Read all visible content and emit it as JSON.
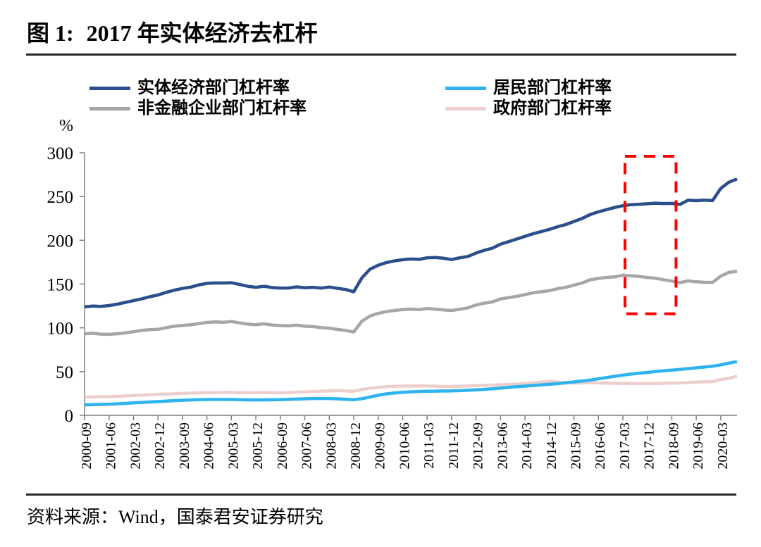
{
  "figure": {
    "number_label": "图 1:",
    "title": "2017 年实体经济去杠杆",
    "source_label": "资料来源：",
    "source_text": "Wind，国泰君安证券研究"
  },
  "legend": {
    "items": [
      {
        "label": "实体经济部门杠杆率",
        "color": "#2b4e8c"
      },
      {
        "label": "居民部门杠杆率",
        "color": "#2eb3f0"
      },
      {
        "label": "非金融企业部门杠杆率",
        "color": "#a6a6a6"
      },
      {
        "label": "政府部门杠杆率",
        "color": "#eccfcd"
      }
    ]
  },
  "chart_data": {
    "type": "line",
    "title": "2017 年实体经济去杠杆",
    "ylabel": "%",
    "ylim": [
      0,
      300
    ],
    "y_ticks": [
      0,
      50,
      100,
      150,
      200,
      250,
      300
    ],
    "grid": false,
    "legend_position": "top",
    "x_start": "2000-09",
    "x_end": "2020-09",
    "x_freq_months": 3,
    "x_tick_labels": [
      "2000-09",
      "2001-06",
      "2002-03",
      "2002-12",
      "2003-09",
      "2004-06",
      "2005-03",
      "2005-12",
      "2006-09",
      "2007-06",
      "2008-03",
      "2008-12",
      "2009-09",
      "2010-06",
      "2011-03",
      "2011-12",
      "2012-09",
      "2013-06",
      "2014-03",
      "2014-12",
      "2015-09",
      "2016-06",
      "2017-03",
      "2017-12",
      "2018-09",
      "2019-06",
      "2020-03"
    ],
    "series": [
      {
        "name": "实体经济部门杠杆率",
        "color": "#2b4e8c",
        "values": [
          124.0,
          124.8,
          124.5,
          125.5,
          127.0,
          129.0,
          131.0,
          133.0,
          135.5,
          137.5,
          140.5,
          143.0,
          145.0,
          146.5,
          149.0,
          150.8,
          151.3,
          151.2,
          151.5,
          149.5,
          147.5,
          146.3,
          147.5,
          146.0,
          145.3,
          145.5,
          146.8,
          145.8,
          146.3,
          145.4,
          146.6,
          145.2,
          143.8,
          141.2,
          157.0,
          167.0,
          171.5,
          174.5,
          176.5,
          177.8,
          178.6,
          178.2,
          180.0,
          180.3,
          179.5,
          178.0,
          180.0,
          181.5,
          185.5,
          188.5,
          191.0,
          195.5,
          198.5,
          201.5,
          204.5,
          207.5,
          210.0,
          212.5,
          215.5,
          218.0,
          221.5,
          225.0,
          229.5,
          232.5,
          235.0,
          237.5,
          239.5,
          240.7,
          241.2,
          241.8,
          242.4,
          242.0,
          242.2,
          241.0,
          245.8,
          245.3,
          245.9,
          245.4,
          259.3,
          266.4,
          270.1
        ]
      },
      {
        "name": "居民部门杠杆率",
        "color": "#2eb3f0",
        "values": [
          12.0,
          12.2,
          12.5,
          12.8,
          13.2,
          13.7,
          14.2,
          14.8,
          15.3,
          15.8,
          16.3,
          16.8,
          17.2,
          17.6,
          17.9,
          18.1,
          18.2,
          18.2,
          18.1,
          17.9,
          17.7,
          17.6,
          17.7,
          17.8,
          18.0,
          18.3,
          18.6,
          18.9,
          19.2,
          19.3,
          19.2,
          18.9,
          18.4,
          17.9,
          19.0,
          21.0,
          23.0,
          24.5,
          25.5,
          26.3,
          26.9,
          27.3,
          27.5,
          27.7,
          27.8,
          27.9,
          28.2,
          28.6,
          29.1,
          29.7,
          30.4,
          31.1,
          31.9,
          32.7,
          33.4,
          34.1,
          34.8,
          35.5,
          36.3,
          37.2,
          38.2,
          39.2,
          40.4,
          41.8,
          43.2,
          44.6,
          45.9,
          47.1,
          48.2,
          49.1,
          50.0,
          50.9,
          51.7,
          52.4,
          53.4,
          54.3,
          55.2,
          56.1,
          57.7,
          59.7,
          61.4
        ]
      },
      {
        "name": "非金融企业部门杠杆率",
        "color": "#a6a6a6",
        "values": [
          93.2,
          93.8,
          92.8,
          92.6,
          93.2,
          94.2,
          95.6,
          97.0,
          98.0,
          98.3,
          100.2,
          101.8,
          102.8,
          103.4,
          104.8,
          106.2,
          106.8,
          106.3,
          107.2,
          105.6,
          104.2,
          103.4,
          104.6,
          103.2,
          102.6,
          102.2,
          103.0,
          101.8,
          101.4,
          100.2,
          99.6,
          98.2,
          97.0,
          95.2,
          107.5,
          113.5,
          116.5,
          118.5,
          119.8,
          120.8,
          121.4,
          120.8,
          122.0,
          121.4,
          120.4,
          119.8,
          121.2,
          122.8,
          126.0,
          128.2,
          129.6,
          133.0,
          134.5,
          136.0,
          138.0,
          140.0,
          141.2,
          142.4,
          144.8,
          146.2,
          148.8,
          151.2,
          154.8,
          156.4,
          157.6,
          158.2,
          160.2,
          159.4,
          158.8,
          157.6,
          156.6,
          155.0,
          153.4,
          151.6,
          153.6,
          152.6,
          152.0,
          151.9,
          159.1,
          163.4,
          164.4
        ]
      },
      {
        "name": "政府部门杠杆率",
        "color": "#eccfcd",
        "values": [
          20.8,
          21.0,
          21.4,
          21.3,
          21.7,
          22.2,
          22.8,
          23.2,
          23.6,
          24.1,
          24.4,
          24.7,
          25.0,
          25.4,
          25.7,
          25.9,
          26.0,
          26.1,
          26.2,
          26.0,
          25.8,
          25.9,
          26.2,
          25.9,
          25.8,
          25.9,
          26.5,
          26.8,
          27.3,
          27.6,
          28.0,
          28.4,
          28.0,
          27.6,
          29.5,
          31.0,
          32.0,
          32.8,
          33.2,
          33.5,
          33.6,
          33.7,
          33.5,
          33.3,
          33.0,
          33.0,
          33.3,
          33.6,
          34.0,
          34.3,
          34.6,
          35.0,
          35.4,
          35.8,
          36.3,
          37.0,
          37.8,
          38.8,
          38.0,
          37.4,
          37.0,
          37.0,
          37.3,
          37.0,
          36.8,
          36.6,
          36.5,
          36.4,
          36.4,
          36.4,
          36.4,
          36.6,
          36.8,
          37.0,
          37.5,
          38.0,
          38.3,
          38.5,
          41.0,
          42.3,
          44.7
        ]
      }
    ],
    "annotation_box": {
      "type": "dashed-rect",
      "color": "#fe0000",
      "x_from": "2017-03",
      "x_to": "2018-09",
      "y_from": 116,
      "y_to": 296
    },
    "axis_color": "#7f7f7f"
  }
}
